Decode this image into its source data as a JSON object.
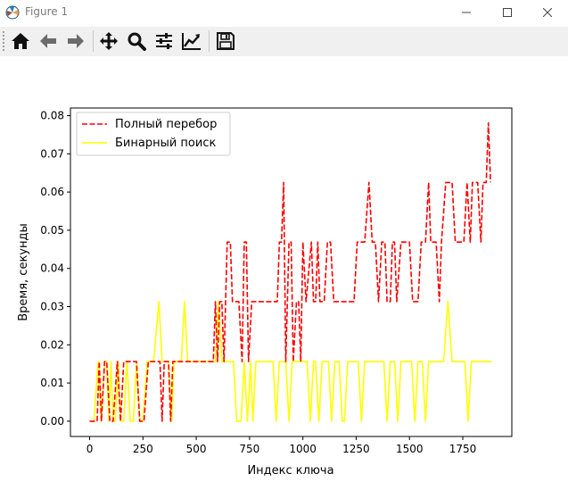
{
  "window": {
    "title": "Figure 1"
  },
  "toolbar": {
    "buttons": [
      {
        "icon": "home-icon"
      },
      {
        "icon": "back-arrow-icon"
      },
      {
        "icon": "forward-arrow-icon"
      },
      {
        "icon": "pan-icon"
      },
      {
        "icon": "zoom-icon"
      },
      {
        "icon": "configure-subplots-icon"
      },
      {
        "icon": "edit-axis-icon"
      },
      {
        "icon": "save-icon"
      }
    ]
  },
  "chart_data": {
    "type": "line",
    "xlabel": "Индекс ключа",
    "ylabel": "Время, секунды",
    "xlim": [
      -90,
      1980
    ],
    "ylim": [
      -0.004,
      0.082
    ],
    "xticks": [
      "0",
      "250",
      "500",
      "750",
      "1000",
      "1250",
      "1500",
      "1750"
    ],
    "yticks": [
      "0.00",
      "0.01",
      "0.02",
      "0.03",
      "0.04",
      "0.05",
      "0.06",
      "0.07",
      "0.08"
    ],
    "legend_position": "top-left",
    "series": [
      {
        "name": "Полный перебор",
        "color": "#ff0000",
        "style": "dashed",
        "points": [
          [
            0,
            0
          ],
          [
            35,
            0
          ],
          [
            45,
            0.0156
          ],
          [
            55,
            0
          ],
          [
            70,
            0.0156
          ],
          [
            80,
            0.0156
          ],
          [
            95,
            0
          ],
          [
            110,
            0
          ],
          [
            130,
            0.0156
          ],
          [
            145,
            0
          ],
          [
            160,
            0.0156
          ],
          [
            220,
            0.0156
          ],
          [
            235,
            0
          ],
          [
            255,
            0
          ],
          [
            275,
            0.0156
          ],
          [
            330,
            0.0156
          ],
          [
            340,
            0
          ],
          [
            350,
            0.0156
          ],
          [
            370,
            0.0156
          ],
          [
            380,
            0
          ],
          [
            390,
            0.0156
          ],
          [
            580,
            0.0156
          ],
          [
            590,
            0.0313
          ],
          [
            600,
            0.0156
          ],
          [
            610,
            0.0313
          ],
          [
            620,
            0.0313
          ],
          [
            630,
            0.0156
          ],
          [
            645,
            0.0469
          ],
          [
            660,
            0.0469
          ],
          [
            670,
            0.0313
          ],
          [
            700,
            0.0313
          ],
          [
            715,
            0.0156
          ],
          [
            725,
            0.0469
          ],
          [
            735,
            0.0469
          ],
          [
            745,
            0.0156
          ],
          [
            760,
            0.0313
          ],
          [
            880,
            0.0313
          ],
          [
            890,
            0.0469
          ],
          [
            900,
            0.0469
          ],
          [
            910,
            0.0625
          ],
          [
            920,
            0.0156
          ],
          [
            935,
            0.0469
          ],
          [
            945,
            0.0469
          ],
          [
            955,
            0.0156
          ],
          [
            970,
            0.0313
          ],
          [
            980,
            0.0313
          ],
          [
            990,
            0.0156
          ],
          [
            1000,
            0.0469
          ],
          [
            1015,
            0.0313
          ],
          [
            1040,
            0.0469
          ],
          [
            1050,
            0.0313
          ],
          [
            1060,
            0.0313
          ],
          [
            1070,
            0.0469
          ],
          [
            1080,
            0.0313
          ],
          [
            1100,
            0.0313
          ],
          [
            1115,
            0.0469
          ],
          [
            1130,
            0.0469
          ],
          [
            1145,
            0.0313
          ],
          [
            1240,
            0.0313
          ],
          [
            1255,
            0.0469
          ],
          [
            1290,
            0.0469
          ],
          [
            1310,
            0.0625
          ],
          [
            1325,
            0.0469
          ],
          [
            1340,
            0.0469
          ],
          [
            1355,
            0.0313
          ],
          [
            1370,
            0.0469
          ],
          [
            1385,
            0.0469
          ],
          [
            1395,
            0.0313
          ],
          [
            1410,
            0.0313
          ],
          [
            1420,
            0.0469
          ],
          [
            1430,
            0.0469
          ],
          [
            1440,
            0.0313
          ],
          [
            1460,
            0.0469
          ],
          [
            1500,
            0.0469
          ],
          [
            1515,
            0.0313
          ],
          [
            1540,
            0.0313
          ],
          [
            1555,
            0.0469
          ],
          [
            1575,
            0.0469
          ],
          [
            1590,
            0.0625
          ],
          [
            1600,
            0.0469
          ],
          [
            1625,
            0.0469
          ],
          [
            1640,
            0.0313
          ],
          [
            1650,
            0.0469
          ],
          [
            1670,
            0.0625
          ],
          [
            1700,
            0.0625
          ],
          [
            1715,
            0.0469
          ],
          [
            1755,
            0.0469
          ],
          [
            1770,
            0.0625
          ],
          [
            1785,
            0.0469
          ],
          [
            1795,
            0.0625
          ],
          [
            1820,
            0.0625
          ],
          [
            1835,
            0.0469
          ],
          [
            1845,
            0.0625
          ],
          [
            1860,
            0.0625
          ],
          [
            1870,
            0.0781
          ],
          [
            1880,
            0.0625
          ]
        ]
      },
      {
        "name": "Бинарный поиск",
        "color": "#ffff00",
        "style": "solid",
        "points": [
          [
            0,
            0
          ],
          [
            20,
            0
          ],
          [
            40,
            0.0156
          ],
          [
            55,
            0
          ],
          [
            70,
            0.0156
          ],
          [
            80,
            0.0156
          ],
          [
            90,
            0
          ],
          [
            100,
            0.0156
          ],
          [
            110,
            0
          ],
          [
            120,
            0
          ],
          [
            135,
            0.0156
          ],
          [
            145,
            0
          ],
          [
            160,
            0
          ],
          [
            175,
            0.0156
          ],
          [
            190,
            0
          ],
          [
            205,
            0
          ],
          [
            220,
            0.0156
          ],
          [
            235,
            0
          ],
          [
            250,
            0
          ],
          [
            270,
            0.0156
          ],
          [
            300,
            0.0156
          ],
          [
            325,
            0.0313
          ],
          [
            340,
            0.0156
          ],
          [
            370,
            0.0156
          ],
          [
            385,
            0
          ],
          [
            395,
            0.0156
          ],
          [
            430,
            0.0156
          ],
          [
            445,
            0.0313
          ],
          [
            460,
            0.0156
          ],
          [
            590,
            0.0156
          ],
          [
            605,
            0.0313
          ],
          [
            620,
            0.0156
          ],
          [
            675,
            0.0156
          ],
          [
            690,
            0
          ],
          [
            710,
            0
          ],
          [
            725,
            0.0156
          ],
          [
            740,
            0
          ],
          [
            755,
            0.0156
          ],
          [
            765,
            0
          ],
          [
            780,
            0.0156
          ],
          [
            860,
            0.0156
          ],
          [
            875,
            0
          ],
          [
            890,
            0.0156
          ],
          [
            920,
            0.0156
          ],
          [
            935,
            0
          ],
          [
            950,
            0.0156
          ],
          [
            1020,
            0.0156
          ],
          [
            1035,
            0
          ],
          [
            1050,
            0.0156
          ],
          [
            1060,
            0.0156
          ],
          [
            1075,
            0
          ],
          [
            1090,
            0.0156
          ],
          [
            1120,
            0.0156
          ],
          [
            1135,
            0
          ],
          [
            1150,
            0.0156
          ],
          [
            1170,
            0.0156
          ],
          [
            1185,
            0
          ],
          [
            1195,
            0
          ],
          [
            1210,
            0.0156
          ],
          [
            1260,
            0.0156
          ],
          [
            1275,
            0
          ],
          [
            1290,
            0.0156
          ],
          [
            1380,
            0.0156
          ],
          [
            1395,
            0
          ],
          [
            1410,
            0.0156
          ],
          [
            1430,
            0.0156
          ],
          [
            1445,
            0
          ],
          [
            1460,
            0.0156
          ],
          [
            1510,
            0.0156
          ],
          [
            1525,
            0
          ],
          [
            1540,
            0.0156
          ],
          [
            1560,
            0.0156
          ],
          [
            1575,
            0
          ],
          [
            1590,
            0.0156
          ],
          [
            1660,
            0.0156
          ],
          [
            1680,
            0.0313
          ],
          [
            1700,
            0.0156
          ],
          [
            1760,
            0.0156
          ],
          [
            1775,
            0
          ],
          [
            1790,
            0.0156
          ],
          [
            1885,
            0.0156
          ]
        ]
      }
    ]
  }
}
